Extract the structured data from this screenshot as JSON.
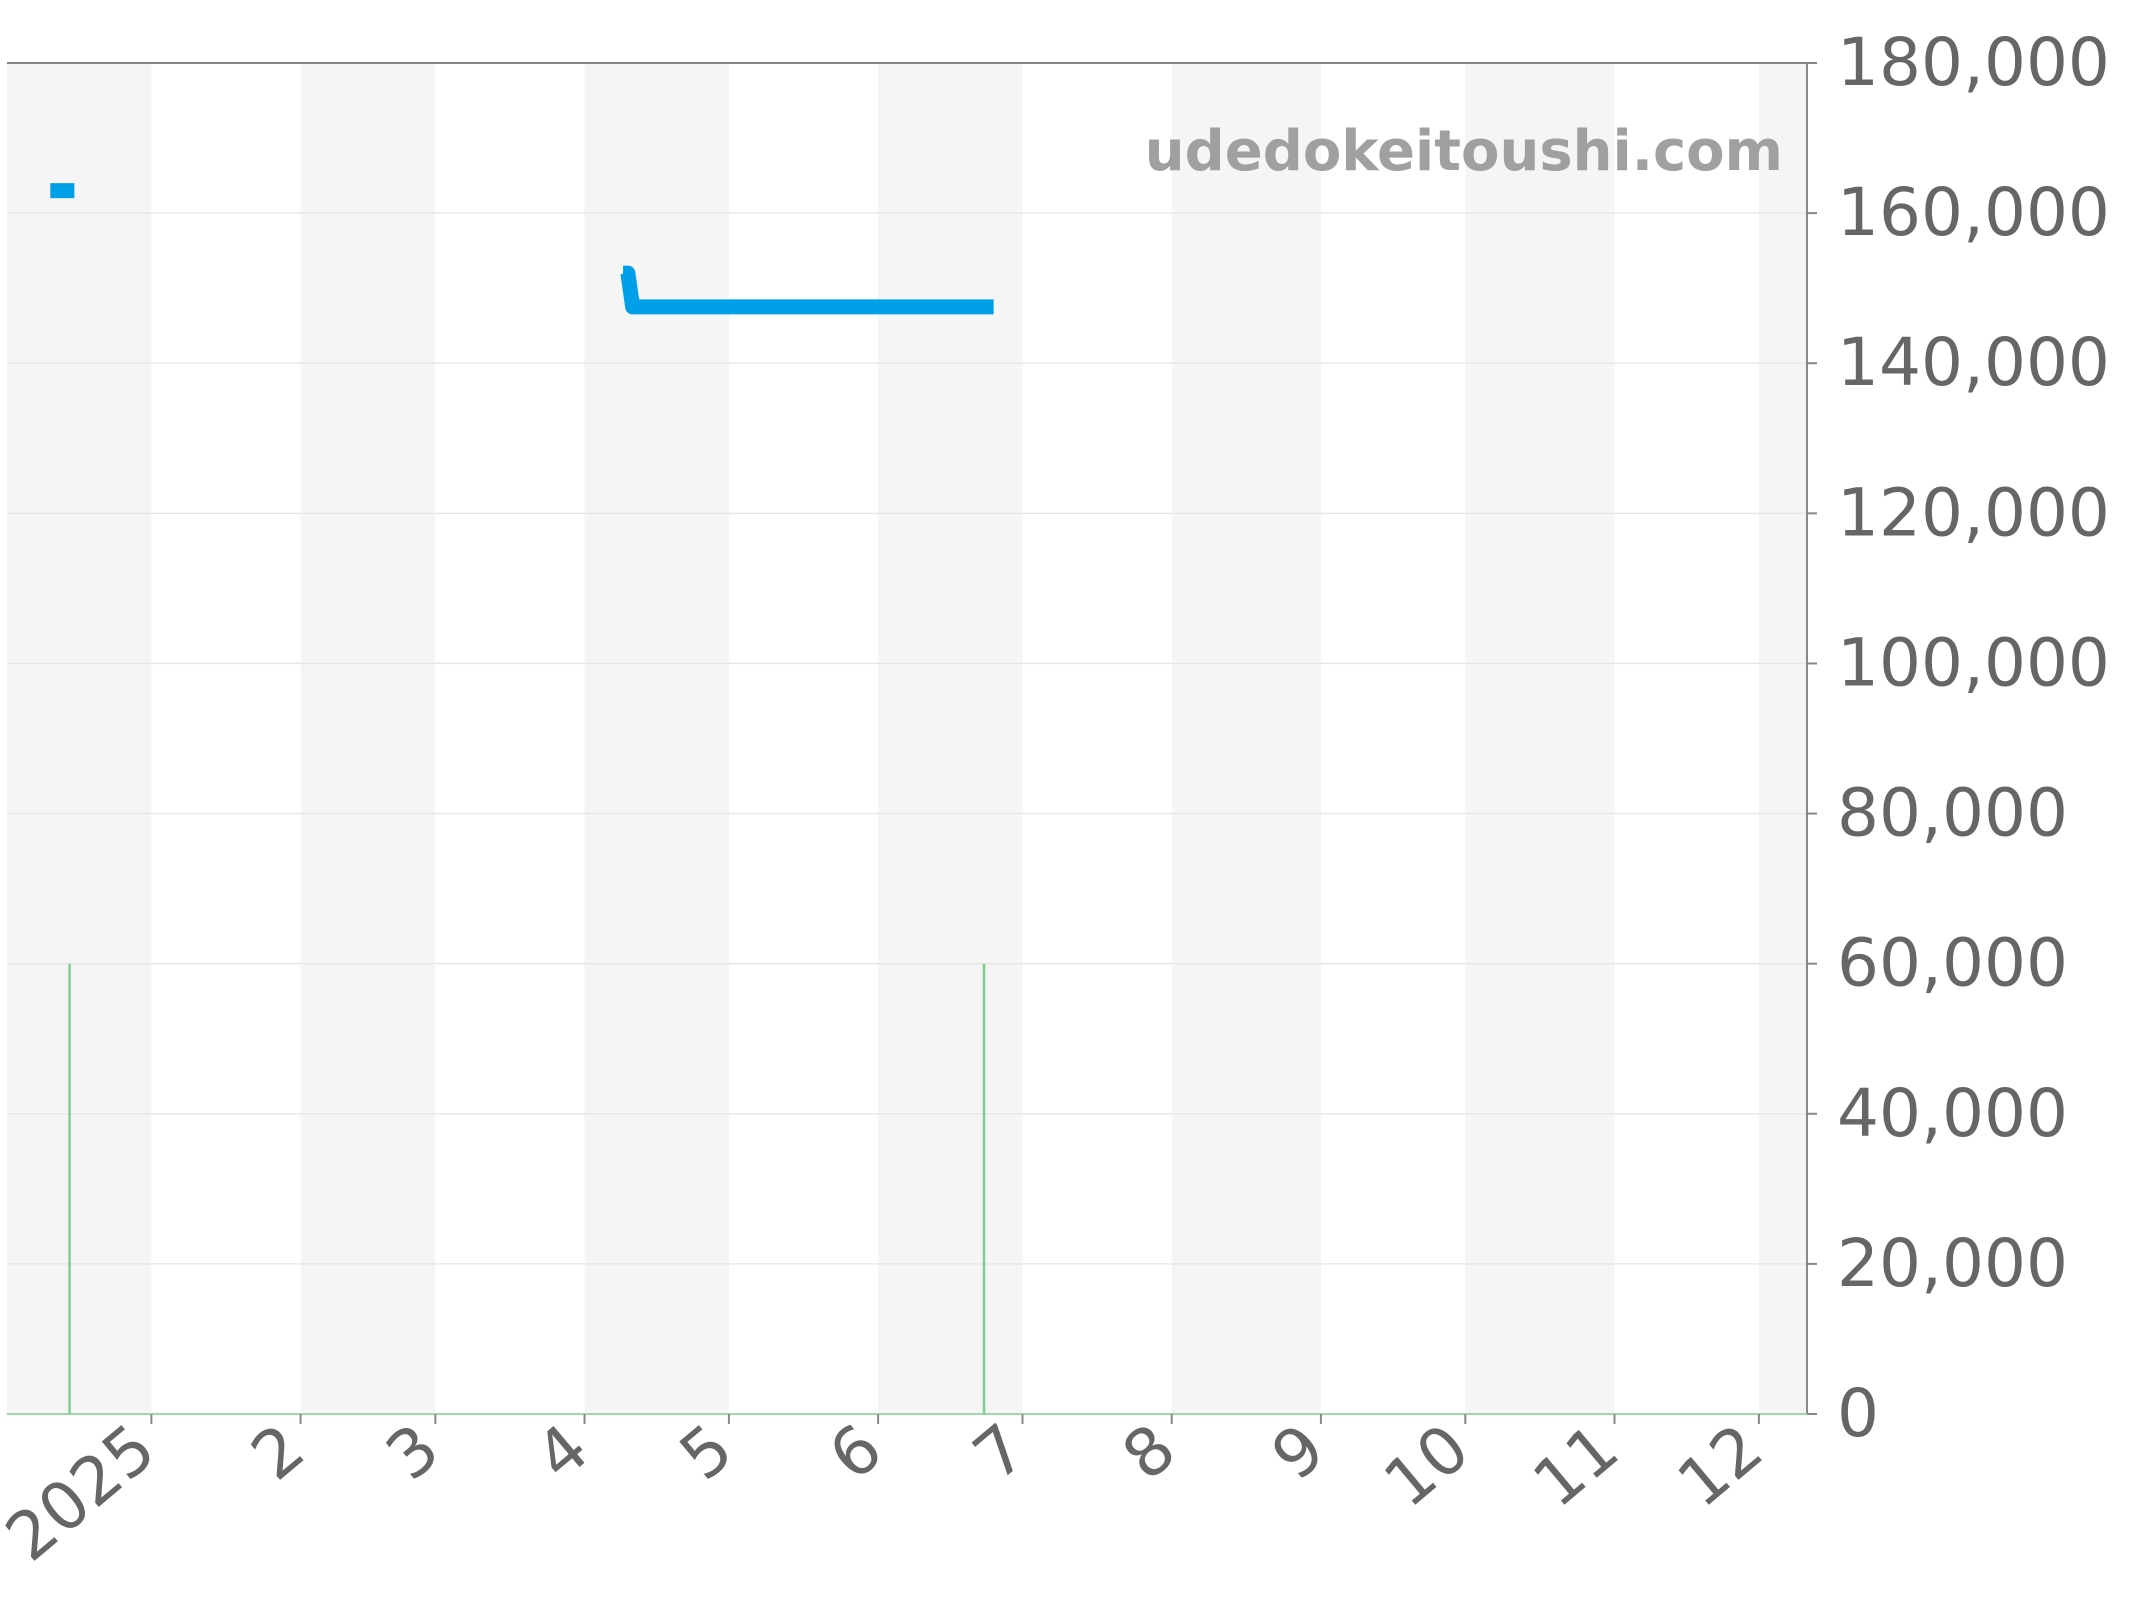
{
  "chart_data": {
    "type": "line",
    "title": "",
    "xlabel": "",
    "ylabel": "",
    "watermark": "udedokeitoushi.com",
    "x_range": [
      "2024-12-02",
      "2025-12-11"
    ],
    "ylim": [
      0,
      180000
    ],
    "y_ticks": [
      0,
      20000,
      40000,
      60000,
      80000,
      100000,
      120000,
      140000,
      160000,
      180000
    ],
    "y_tick_labels": [
      "0",
      "20,000",
      "40,000",
      "60,000",
      "80,000",
      "100,000",
      "120,000",
      "140,000",
      "160,000",
      "180,000"
    ],
    "y_axis_position": "right",
    "x_ticks": [
      {
        "date": "2025-01-01",
        "label": "2025"
      },
      {
        "date": "2025-02-01",
        "label": "2"
      },
      {
        "date": "2025-03-01",
        "label": "3"
      },
      {
        "date": "2025-04-01",
        "label": "4"
      },
      {
        "date": "2025-05-01",
        "label": "5"
      },
      {
        "date": "2025-06-01",
        "label": "6"
      },
      {
        "date": "2025-07-01",
        "label": "7"
      },
      {
        "date": "2025-08-01",
        "label": "8"
      },
      {
        "date": "2025-09-01",
        "label": "9"
      },
      {
        "date": "2025-10-01",
        "label": "10"
      },
      {
        "date": "2025-11-01",
        "label": "11"
      },
      {
        "date": "2025-12-01",
        "label": "12"
      }
    ],
    "grid": true,
    "alternating_month_shading": true,
    "series": [
      {
        "color": "#00a0e9",
        "segments": [
          [
            {
              "x": "2024-12-11",
              "y": 163000
            },
            {
              "x": "2024-12-16",
              "y": 163000
            }
          ],
          [
            {
              "x": "2025-04-09",
              "y": 152000
            },
            {
              "x": "2025-04-10",
              "y": 152000
            },
            {
              "x": "2025-04-11",
              "y": 147500
            },
            {
              "x": "2025-06-25",
              "y": 147500
            }
          ]
        ]
      }
    ],
    "bars": {
      "color": "#7fce8f",
      "points": [
        {
          "x": "2024-12-15",
          "y": 60000
        },
        {
          "x": "2025-06-23",
          "y": 60000
        }
      ]
    },
    "colors": {
      "shade": "#f5f5f5",
      "grid": "#e6e6e6",
      "axis": "#888888",
      "tick_text": "#666666",
      "watermark": "#a0a0a0"
    }
  }
}
